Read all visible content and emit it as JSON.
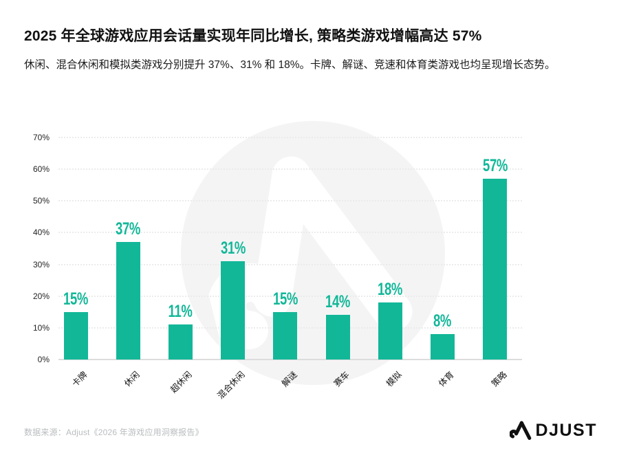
{
  "header": {
    "title": "2025 年全球游戏应用会话量实现年同比增长, 策略类游戏增幅高达 57%",
    "subtitle": "休闲、混合休闲和模拟类游戏分别提升 37%、31% 和 18%。卡牌、解谜、竞速和体育类游戏也均呈现增长态势。"
  },
  "chart_data": {
    "type": "bar",
    "categories": [
      "卡牌",
      "休闲",
      "超休闲",
      "混合休闲",
      "解谜",
      "赛车",
      "模拟",
      "体育",
      "策略"
    ],
    "values": [
      15,
      37,
      11,
      31,
      15,
      14,
      18,
      8,
      57
    ],
    "value_labels": [
      "15%",
      "37%",
      "11%",
      "31%",
      "15%",
      "14%",
      "18%",
      "8%",
      "57%"
    ],
    "yticks": [
      0,
      10,
      20,
      30,
      40,
      50,
      60,
      70
    ],
    "ytick_labels": [
      "0%",
      "10%",
      "20%",
      "30%",
      "40%",
      "50%",
      "60%",
      "70%"
    ],
    "ylim": [
      0,
      70
    ],
    "xlabel": "",
    "ylabel": "",
    "grid": "horizontal-dotted",
    "legend": "none",
    "bar_color": "#12b798",
    "value_label_color": "#12b798"
  },
  "watermark": {
    "name": "adjust-logo-watermark",
    "circle_color": "#f4f4f5",
    "glyph_color": "#ffffff"
  },
  "footer": {
    "source": "数据来源：Adjust《2026 年游戏应用洞察报告》",
    "brand": "ADJUST",
    "brand_rest": "DJUST",
    "brand_color": "#101010"
  }
}
